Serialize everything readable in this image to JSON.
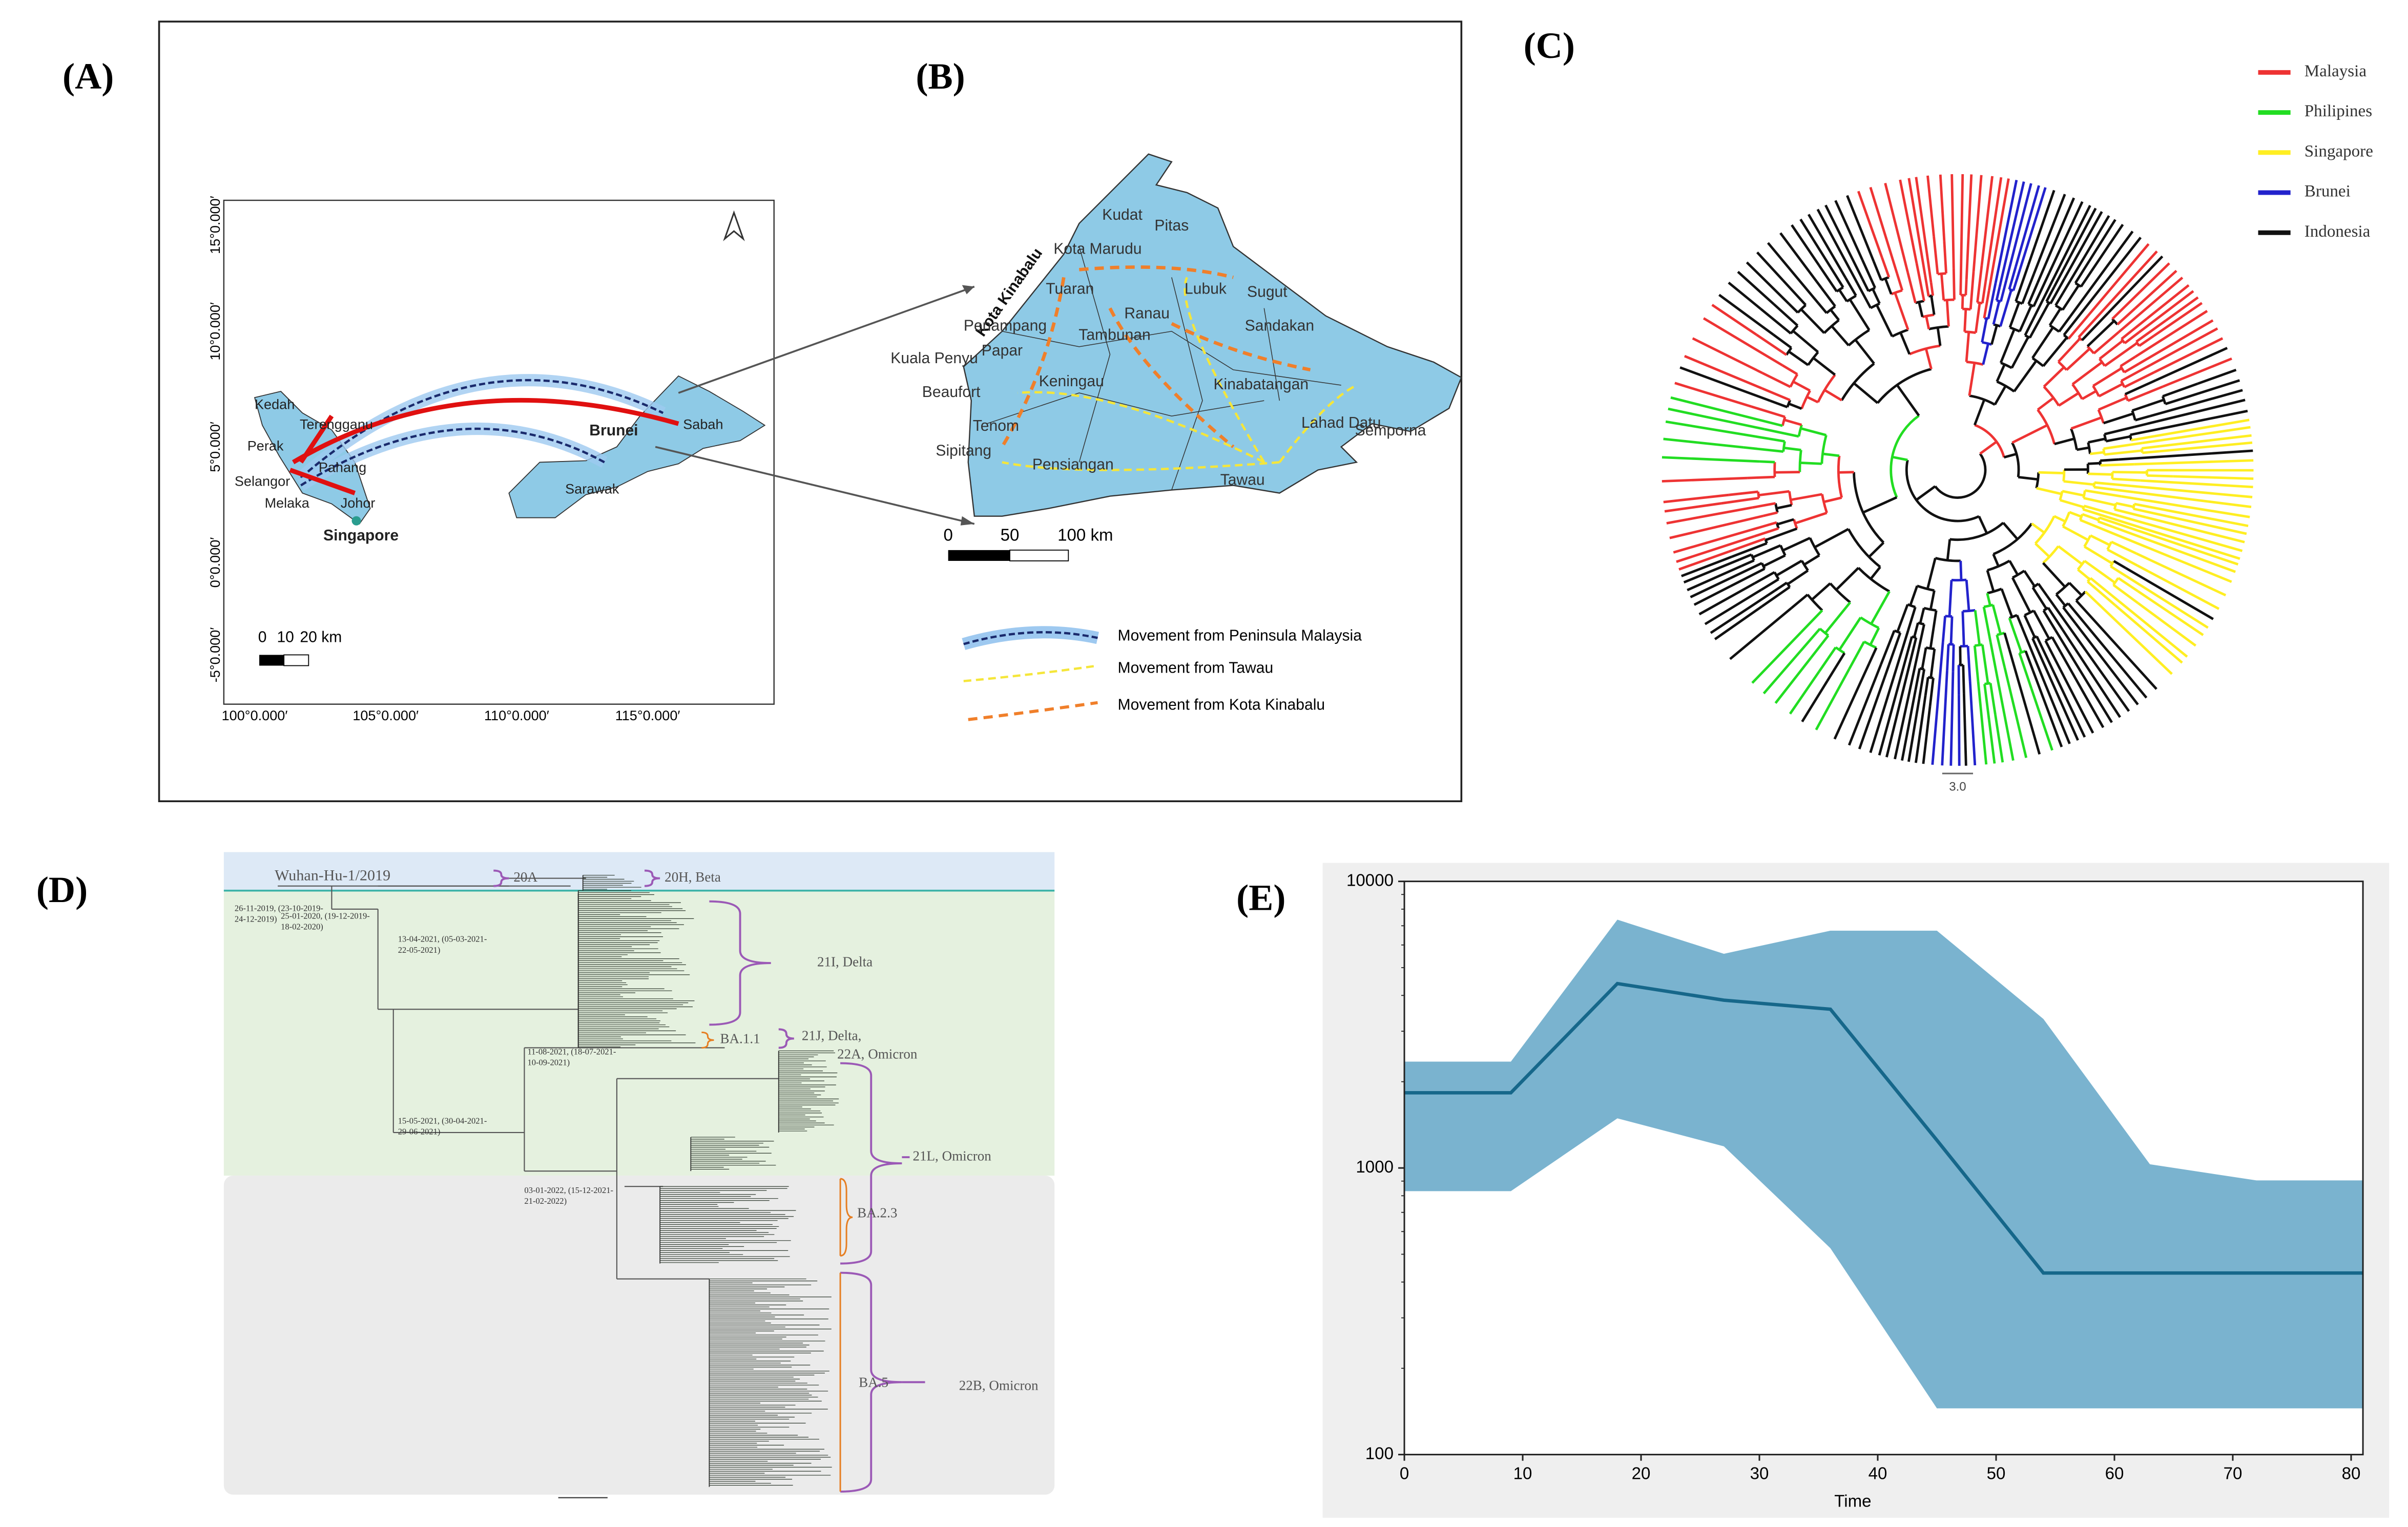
{
  "panel_labels": [
    "(A)",
    "(B)",
    "(C)",
    "(D)",
    "(E)"
  ],
  "map_a": {
    "places": [
      "Kedah",
      "Perak",
      "Terengganu",
      "Pahang",
      "Selangor",
      "Melaka",
      "Johor",
      "Singapore",
      "Brunei",
      "Sabah",
      "Sarawak"
    ],
    "lat_labels": [
      "15°0.000′",
      "10°0.000′",
      "5°0.000′",
      "0°0.000′",
      "-5°0.000′"
    ],
    "lon_labels": [
      "100°0.000′",
      "105°0.000′",
      "110°0.000′",
      "115°0.000′"
    ],
    "scale_labels": [
      "0",
      "10",
      "20 km"
    ]
  },
  "map_b": {
    "places": [
      "Kudat",
      "Pitas",
      "Kota Marudu",
      "Kota Kinabalu",
      "Tuaran",
      "Ranau",
      "Lubuk",
      "Sugut",
      "Penampang",
      "Tambunan",
      "Sandakan",
      "Papar",
      "Kuala Penyu",
      "Keningau",
      "Kinabatangan",
      "Beaufort",
      "Tenom",
      "Lahad Datu",
      "Sipitang",
      "Pensiangan",
      "Tawau",
      "Semporna"
    ],
    "scale_labels": [
      "0",
      "50",
      "100 km"
    ],
    "legend": [
      "Movement from Peninsula Malaysia",
      "Movement from Tawau",
      "Movement from Kota Kinabalu"
    ]
  },
  "tree_c": {
    "legend": [
      {
        "name": "Malaysia",
        "color": "#ee3333"
      },
      {
        "name": "Philipines",
        "color": "#22dd22"
      },
      {
        "name": "Singapore",
        "color": "#ffee22"
      },
      {
        "name": "Brunei",
        "color": "#2222cc"
      },
      {
        "name": "Indonesia",
        "color": "#111111"
      }
    ],
    "scale_label": "3.0"
  },
  "tree_d": {
    "root": "Wuhan-Hu-1/2019",
    "clades": [
      "20A",
      "20H, Beta",
      "21I, Delta",
      "BA.1.1",
      "21J, Delta,",
      "22A, Omicron",
      "21L, Omicron",
      "BA.2.3",
      "BA.5",
      "22B, Omicron"
    ],
    "node_dates": [
      [
        "26-11-2019, (23-10-2019-",
        "24-12-2019)"
      ],
      [
        "25-01-2020, (19-12-2019-",
        "18-02-2020)"
      ],
      [
        "13-04-2021, (05-03-2021-",
        "22-05-2021)"
      ],
      [
        "11-08-2021, (18-07-2021-",
        "10-09-2021)"
      ],
      [
        "15-05-2021, (30-04-2021-",
        "29-06-2021)"
      ],
      [
        "03-01-2022, (15-12-2021-",
        "21-02-2022)"
      ]
    ]
  },
  "chart_data": {
    "type": "line",
    "x": [
      0,
      9,
      18,
      27,
      36,
      45,
      54,
      63,
      72,
      81
    ],
    "series": [
      {
        "color": "#16678a",
        "values": [
          1830,
          1830,
          4400,
          3850,
          3580,
          1250,
          430,
          430,
          430,
          430
        ]
      },
      {
        "color": "#7ab3cf",
        "values": [
          830,
          830,
          1490,
          1190,
          525,
          145,
          145,
          145,
          145,
          145
        ]
      },
      {
        "color": "#7ab3cf",
        "values": [
          2350,
          2350,
          7350,
          5590,
          6730,
          6730,
          3310,
          1030,
          905,
          905
        ]
      }
    ],
    "xlim": [
      0,
      81
    ],
    "xticks": [
      0,
      10,
      20,
      30,
      40,
      50,
      60,
      70,
      80
    ],
    "xlabel": "Time",
    "ylim": [
      100,
      10000
    ],
    "yticks": [
      100,
      1000,
      10000
    ],
    "log_y": true
  }
}
